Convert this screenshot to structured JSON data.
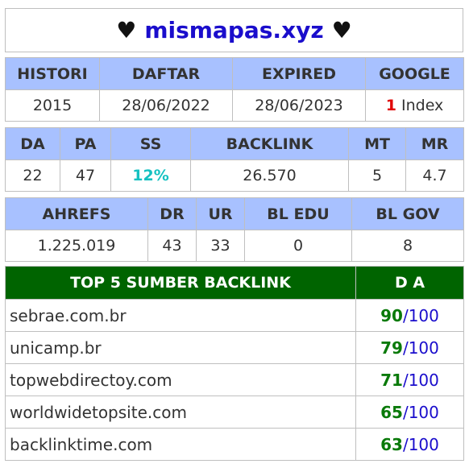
{
  "title": {
    "heart": "♥",
    "site": "mismapas.xyz"
  },
  "table1": {
    "headers": [
      "HISTORI",
      "DAFTAR",
      "EXPIRED",
      "GOOGLE"
    ],
    "values": {
      "histori": "2015",
      "daftar": "28/06/2022",
      "expired": "28/06/2023",
      "google_count": "1",
      "google_label": "Index"
    }
  },
  "table2": {
    "headers": [
      "DA",
      "PA",
      "SS",
      "BACKLINK",
      "MT",
      "MR"
    ],
    "values": [
      "22",
      "47",
      "12%",
      "26.570",
      "5",
      "4.7"
    ]
  },
  "table3": {
    "headers": [
      "AHREFS",
      "DR",
      "UR",
      "BL EDU",
      "BL GOV"
    ],
    "values": [
      "1.225.019",
      "43",
      "33",
      "0",
      "8"
    ]
  },
  "top5": {
    "header_domain": "TOP 5 SUMBER BACKLINK",
    "header_da": "D A",
    "separator": "/",
    "max": "100",
    "rows": [
      {
        "domain": "sebrae.com.br",
        "da": "90"
      },
      {
        "domain": "unicamp.br",
        "da": "79"
      },
      {
        "domain": "topwebdirectoy.com",
        "da": "71"
      },
      {
        "domain": "worldwidetopsite.com",
        "da": "65"
      },
      {
        "domain": "backlinktime.com",
        "da": "63"
      }
    ]
  },
  "colors": {
    "header_bg": "#a8c1ff",
    "top5_header_bg": "#006400",
    "accent_blue": "#1a0dcc",
    "green": "#0a7a0a",
    "red": "#e00000",
    "teal": "#16c1c1"
  }
}
